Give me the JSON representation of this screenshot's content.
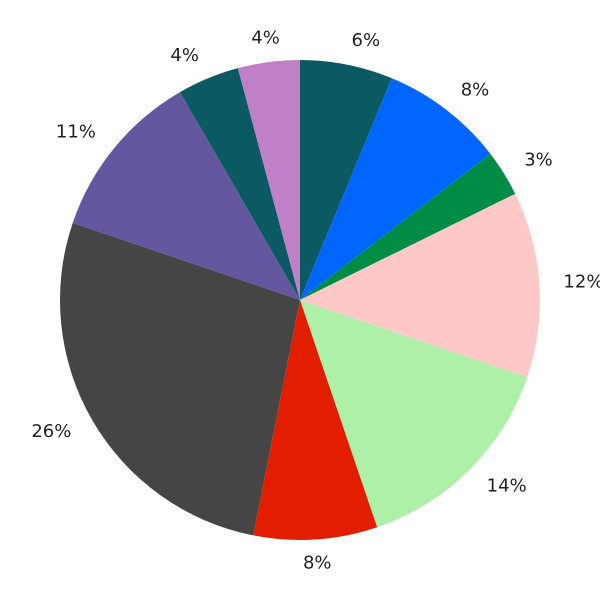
{
  "chart_data": {
    "type": "pie",
    "values": [
      6,
      8,
      3,
      12,
      14,
      8,
      26,
      11,
      4,
      4
    ],
    "value_labels": [
      "6%",
      "8%",
      "3%",
      "12%",
      "14%",
      "8%",
      "26%",
      "11%",
      "4%",
      "4%"
    ],
    "colors": [
      "#0b5a63",
      "#0066ff",
      "#008c45",
      "#ffc8c8",
      "#aef0a8",
      "#e31e00",
      "#454545",
      "#6556a0",
      "#0b5a63",
      "#c080c8"
    ]
  }
}
